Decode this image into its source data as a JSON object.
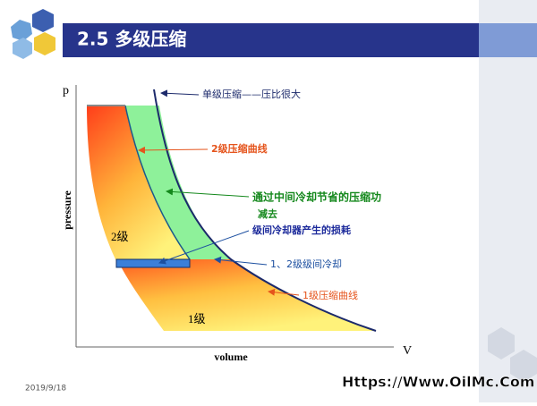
{
  "header": {
    "title": "2.5 多级压缩"
  },
  "diagram": {
    "y_axis_symbol": "p",
    "y_axis_label": "pressure",
    "x_axis_symbol": "V",
    "x_axis_label": "volume",
    "annotations": {
      "single_stage": "单级压缩——压比很大",
      "stage2_curve": "2级压缩曲线",
      "saved_work_line1": "通过中间冷却节省的压缩功",
      "saved_work_line2": "减去",
      "cooler_loss": "级间冷却器产生的损耗",
      "intercooling": "1、2级级间冷却",
      "stage1_curve": "1级压缩曲线"
    },
    "region_labels": {
      "stage2": "2级",
      "stage1": "1级"
    }
  },
  "footer": {
    "date": "2019/9/18",
    "watermark": "Https://Www.OilMc.Com"
  }
}
